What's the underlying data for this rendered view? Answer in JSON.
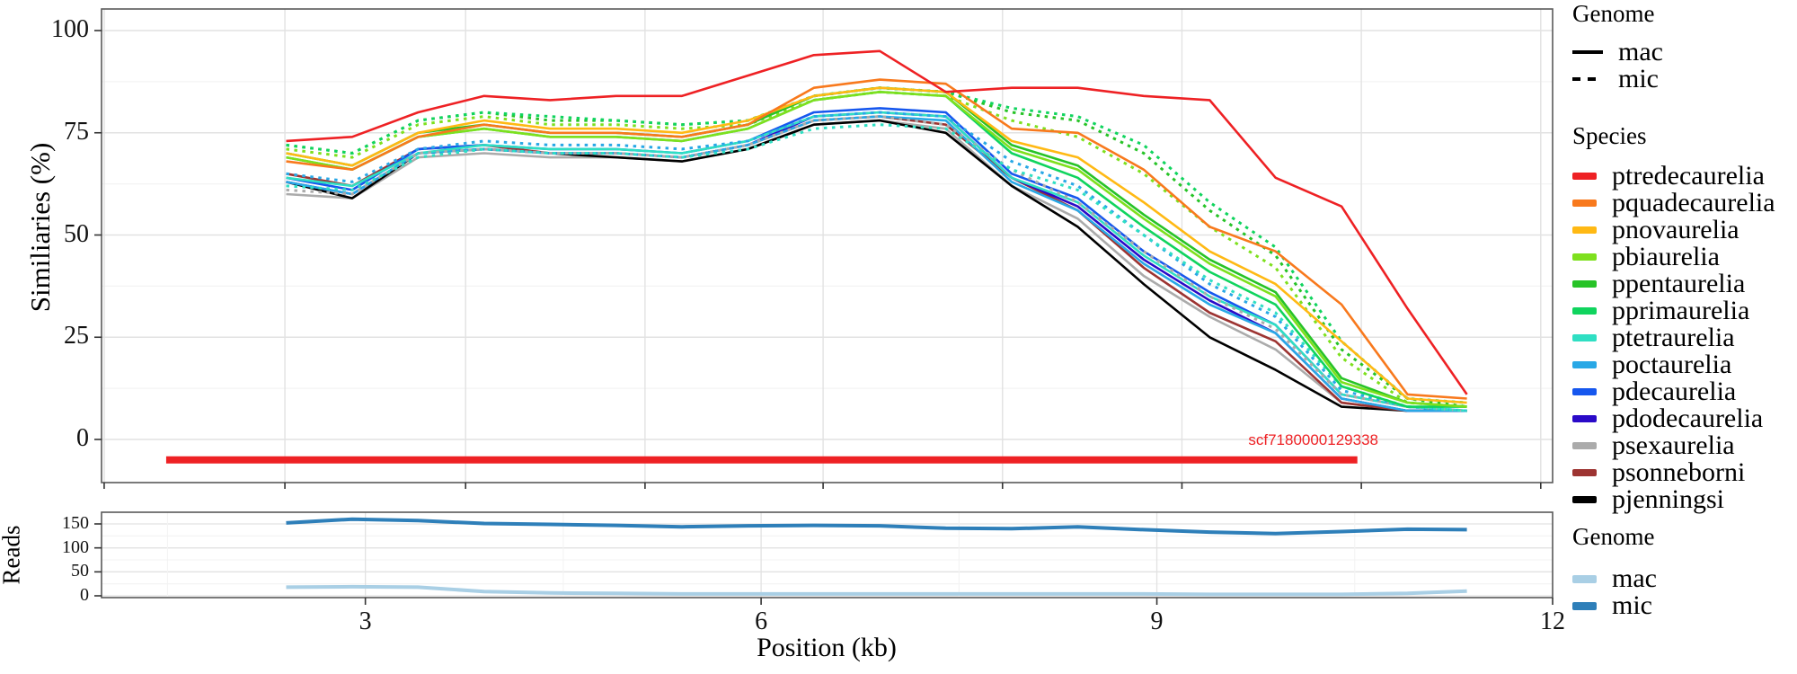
{
  "chart_data": [
    {
      "type": "line",
      "panel": "similarity",
      "ylabel": "Similiaries (%)",
      "y_ticks": [
        0,
        25,
        50,
        75,
        100
      ],
      "y_minor_ticks": [
        12.5,
        37.5,
        62.5,
        87.5
      ],
      "ylim": [
        -10.5,
        105
      ],
      "xlim_kb": [
        1,
        12
      ],
      "x_tick_positions_kb": [
        1.02,
        2.39,
        3.76,
        5.12,
        6.47,
        7.83,
        9.19,
        10.55,
        11.91
      ],
      "grid": "on",
      "x_kb": [
        2.4,
        2.9,
        3.4,
        3.9,
        4.4,
        4.9,
        5.4,
        5.9,
        6.4,
        6.9,
        7.4,
        7.9,
        8.4,
        8.9,
        9.4,
        9.9,
        10.4,
        10.9,
        11.35
      ],
      "series": [
        {
          "name": "psexaurelia",
          "genome": "mac",
          "color": "#ababab",
          "dashed": false,
          "values": [
            60,
            59,
            69,
            70,
            69,
            69,
            68,
            71,
            77,
            78,
            76,
            62,
            54,
            40,
            30,
            22,
            9,
            7,
            7
          ]
        },
        {
          "name": "pjenningsi",
          "genome": "mac",
          "color": "#000000",
          "dashed": false,
          "values": [
            63,
            59,
            70,
            71,
            70,
            69,
            68,
            71,
            77,
            78,
            75,
            62,
            52,
            38,
            25,
            17,
            8,
            7,
            7
          ]
        },
        {
          "name": "psonneborni",
          "genome": "mac",
          "color": "#9d3432",
          "dashed": false,
          "values": [
            65,
            62,
            71,
            72,
            70,
            70,
            69,
            72,
            78,
            79,
            77,
            64,
            56,
            42,
            31,
            24,
            9,
            7,
            7
          ]
        },
        {
          "name": "pdodecaurelia",
          "genome": "mac",
          "color": "#2a0ac8",
          "dashed": false,
          "values": [
            63,
            60,
            70,
            71,
            70,
            70,
            69,
            72,
            79,
            80,
            79,
            64,
            57,
            44,
            34,
            26,
            10,
            7,
            7
          ]
        },
        {
          "name": "pdecaurelia",
          "genome": "mac",
          "color": "#1657ee",
          "dashed": false,
          "values": [
            64,
            61,
            71,
            72,
            71,
            71,
            70,
            73,
            80,
            81,
            80,
            65,
            59,
            46,
            36,
            28,
            11,
            8,
            7
          ]
        },
        {
          "name": "poctaurelia",
          "genome": "mac",
          "color": "#29a8e6",
          "dashed": false,
          "values": [
            63,
            60,
            70,
            71,
            70,
            70,
            69,
            72,
            78,
            79,
            78,
            63,
            56,
            43,
            33,
            26,
            10,
            7,
            7
          ]
        },
        {
          "name": "ptetraurelia",
          "genome": "mac",
          "color": "#2fdfc3",
          "dashed": false,
          "values": [
            64,
            62,
            70,
            72,
            71,
            71,
            70,
            73,
            79,
            80,
            79,
            64,
            58,
            45,
            35,
            28,
            11,
            8,
            7
          ]
        },
        {
          "name": "psexaurelia",
          "genome": "mic",
          "color": "#ababab",
          "dashed": true,
          "values": [
            61,
            60,
            70,
            71,
            70,
            70,
            69,
            72,
            78,
            79,
            77,
            66,
            58,
            46,
            35,
            27,
            11,
            8,
            7
          ]
        },
        {
          "name": "poctaurelia",
          "genome": "mic",
          "color": "#29a8e6",
          "dashed": true,
          "values": [
            65,
            63,
            71,
            73,
            72,
            72,
            71,
            73,
            79,
            80,
            79,
            68,
            62,
            50,
            38,
            30,
            12,
            8,
            7
          ]
        },
        {
          "name": "ptetraurelia",
          "genome": "mic",
          "color": "#2fdfc3",
          "dashed": true,
          "values": [
            62,
            61,
            69,
            71,
            70,
            70,
            69,
            71,
            76,
            77,
            76,
            66,
            61,
            50,
            39,
            31,
            13,
            8,
            7
          ]
        },
        {
          "name": "pbiaurelia",
          "genome": "mic",
          "color": "#7ee01e",
          "dashed": true,
          "values": [
            71,
            69,
            77,
            79,
            77,
            77,
            76,
            77,
            83,
            85,
            84,
            78,
            74,
            65,
            52,
            42,
            20,
            9,
            8
          ]
        },
        {
          "name": "ppentaurelia",
          "genome": "mic",
          "color": "#27c327",
          "dashed": true,
          "values": [
            72,
            70,
            78,
            80,
            78,
            78,
            77,
            78,
            84,
            86,
            85,
            80,
            78,
            70,
            56,
            45,
            22,
            10,
            8
          ]
        },
        {
          "name": "pprimaurelia",
          "genome": "mic",
          "color": "#10d45e",
          "dashed": true,
          "values": [
            72,
            70,
            78,
            80,
            79,
            78,
            77,
            78,
            84,
            86,
            85,
            81,
            79,
            72,
            58,
            47,
            24,
            10,
            9
          ]
        },
        {
          "name": "pprimaurelia",
          "genome": "mac",
          "color": "#10d45e",
          "dashed": false,
          "values": [
            69,
            66,
            74,
            76,
            74,
            74,
            73,
            76,
            83,
            85,
            84,
            70,
            64,
            52,
            41,
            33,
            13,
            8,
            8
          ]
        },
        {
          "name": "ppentaurelia",
          "genome": "mac",
          "color": "#27c327",
          "dashed": false,
          "values": [
            70,
            67,
            75,
            77,
            75,
            75,
            74,
            77,
            84,
            86,
            85,
            72,
            67,
            55,
            44,
            36,
            15,
            9,
            8
          ]
        },
        {
          "name": "pbiaurelia",
          "genome": "mac",
          "color": "#7ee01e",
          "dashed": false,
          "values": [
            69,
            66,
            74,
            76,
            74,
            74,
            73,
            76,
            83,
            85,
            84,
            71,
            66,
            54,
            43,
            35,
            14,
            9,
            8
          ]
        },
        {
          "name": "pnovaurelia",
          "genome": "mac",
          "color": "#ffb914",
          "dashed": false,
          "values": [
            70,
            67,
            75,
            78,
            76,
            76,
            75,
            78,
            84,
            86,
            85,
            73,
            69,
            58,
            46,
            38,
            24,
            10,
            9
          ]
        },
        {
          "name": "pquadecaurelia",
          "genome": "mac",
          "color": "#f8791d",
          "dashed": false,
          "values": [
            68,
            66,
            74,
            77,
            75,
            75,
            74,
            77,
            86,
            88,
            87,
            76,
            75,
            66,
            52,
            46,
            33,
            11,
            10
          ]
        },
        {
          "name": "ptredecaurelia",
          "genome": "mac",
          "color": "#ee2124",
          "dashed": false,
          "values": [
            73,
            74,
            80,
            84,
            83,
            84,
            84,
            89,
            94,
            95,
            85,
            86,
            86,
            84,
            83,
            64,
            57,
            32,
            11
          ]
        }
      ],
      "annotation": {
        "label": "scf7180000129338",
        "color": "#ee2124",
        "bar": {
          "x_start_kb": 1.49,
          "x_end_kb": 10.52,
          "y_pct": -5,
          "thickness_px": 8
        }
      }
    },
    {
      "type": "line",
      "panel": "reads",
      "ylabel": "Reads",
      "xlabel": "Position (kb)",
      "y_ticks": [
        0,
        50,
        100,
        150
      ],
      "y_minor_ticks": [
        25,
        75,
        125
      ],
      "ylim": [
        -4,
        174
      ],
      "xlim_kb": [
        1,
        12
      ],
      "x_ticks_kb": [
        3,
        6,
        9,
        12
      ],
      "x_tick_labels": [
        "3",
        "6",
        "9",
        "12"
      ],
      "x_minor_kb": [
        1.5,
        4.5,
        7.5,
        10.5
      ],
      "grid": "on",
      "x_kb": [
        2.4,
        2.9,
        3.4,
        3.9,
        4.4,
        4.9,
        5.4,
        5.9,
        6.4,
        6.9,
        7.4,
        7.9,
        8.4,
        8.9,
        9.4,
        9.9,
        10.4,
        10.9,
        11.35
      ],
      "series": [
        {
          "name": "mac",
          "color": "#a9cfe5",
          "values": [
            18,
            19,
            18,
            9,
            6,
            5,
            4,
            4,
            4,
            4,
            4,
            4,
            4,
            4,
            3,
            3,
            3,
            5,
            10
          ]
        },
        {
          "name": "mic",
          "color": "#2e7fb9",
          "values": [
            152,
            160,
            157,
            151,
            149,
            147,
            144,
            146,
            147,
            146,
            141,
            140,
            144,
            138,
            133,
            130,
            134,
            139,
            138
          ]
        }
      ]
    }
  ],
  "legends": {
    "top_genome": {
      "title": "Genome",
      "items": [
        {
          "label": "mac",
          "linetype": "solid"
        },
        {
          "label": "mic",
          "linetype": "dashed"
        }
      ]
    },
    "species": {
      "title": "Species",
      "items": [
        {
          "label": "ptredecaurelia",
          "color": "#ee2124"
        },
        {
          "label": "pquadecaurelia",
          "color": "#f8791d"
        },
        {
          "label": "pnovaurelia",
          "color": "#ffb914"
        },
        {
          "label": "pbiaurelia",
          "color": "#7ee01e"
        },
        {
          "label": "ppentaurelia",
          "color": "#27c327"
        },
        {
          "label": "pprimaurelia",
          "color": "#10d45e"
        },
        {
          "label": "ptetraurelia",
          "color": "#2fdfc3"
        },
        {
          "label": "poctaurelia",
          "color": "#29a8e6"
        },
        {
          "label": "pdecaurelia",
          "color": "#1657ee"
        },
        {
          "label": "pdodecaurelia",
          "color": "#2a0ac8"
        },
        {
          "label": "psexaurelia",
          "color": "#ababab"
        },
        {
          "label": "psonneborni",
          "color": "#9d3432"
        },
        {
          "label": "pjenningsi",
          "color": "#000000"
        }
      ]
    },
    "bottom_genome": {
      "title": "Genome",
      "items": [
        {
          "label": "mac",
          "color": "#a9cfe5"
        },
        {
          "label": "mic",
          "color": "#2e7fb9"
        }
      ]
    }
  },
  "colors": {
    "panel_border": "#595959",
    "grid_major": "#e2e2e2",
    "grid_minor": "#f3f3f3",
    "tick": "#333333"
  }
}
